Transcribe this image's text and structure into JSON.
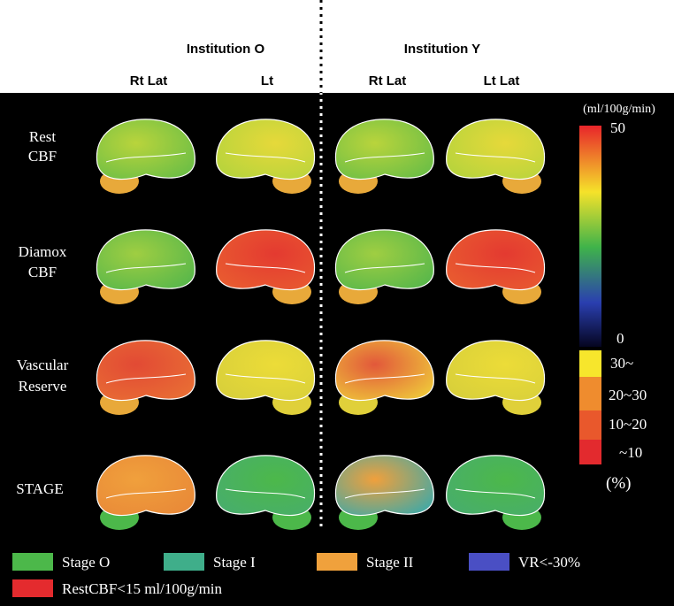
{
  "header": {
    "institutions": [
      "Institution O",
      "Institution Y"
    ],
    "views": [
      "Rt Lat",
      "Lt",
      "Rt Lat",
      "Lt Lat"
    ]
  },
  "rows": [
    [
      "Rest",
      "CBF"
    ],
    [
      "Diamox",
      "CBF"
    ],
    [
      "Vascular",
      "Reserve"
    ],
    [
      "STAGE"
    ]
  ],
  "colorbar": {
    "unit": "(ml/100g/min)",
    "max": "50",
    "min": "0"
  },
  "percent_scale": {
    "labels": [
      "30~",
      "20~30",
      "10~20",
      "~10"
    ],
    "unit": "(%)"
  },
  "legend": [
    "Stage O",
    "Stage I",
    "Stage II",
    "VR<-30%",
    "RestCBF<15 ml/100g/min"
  ]
}
